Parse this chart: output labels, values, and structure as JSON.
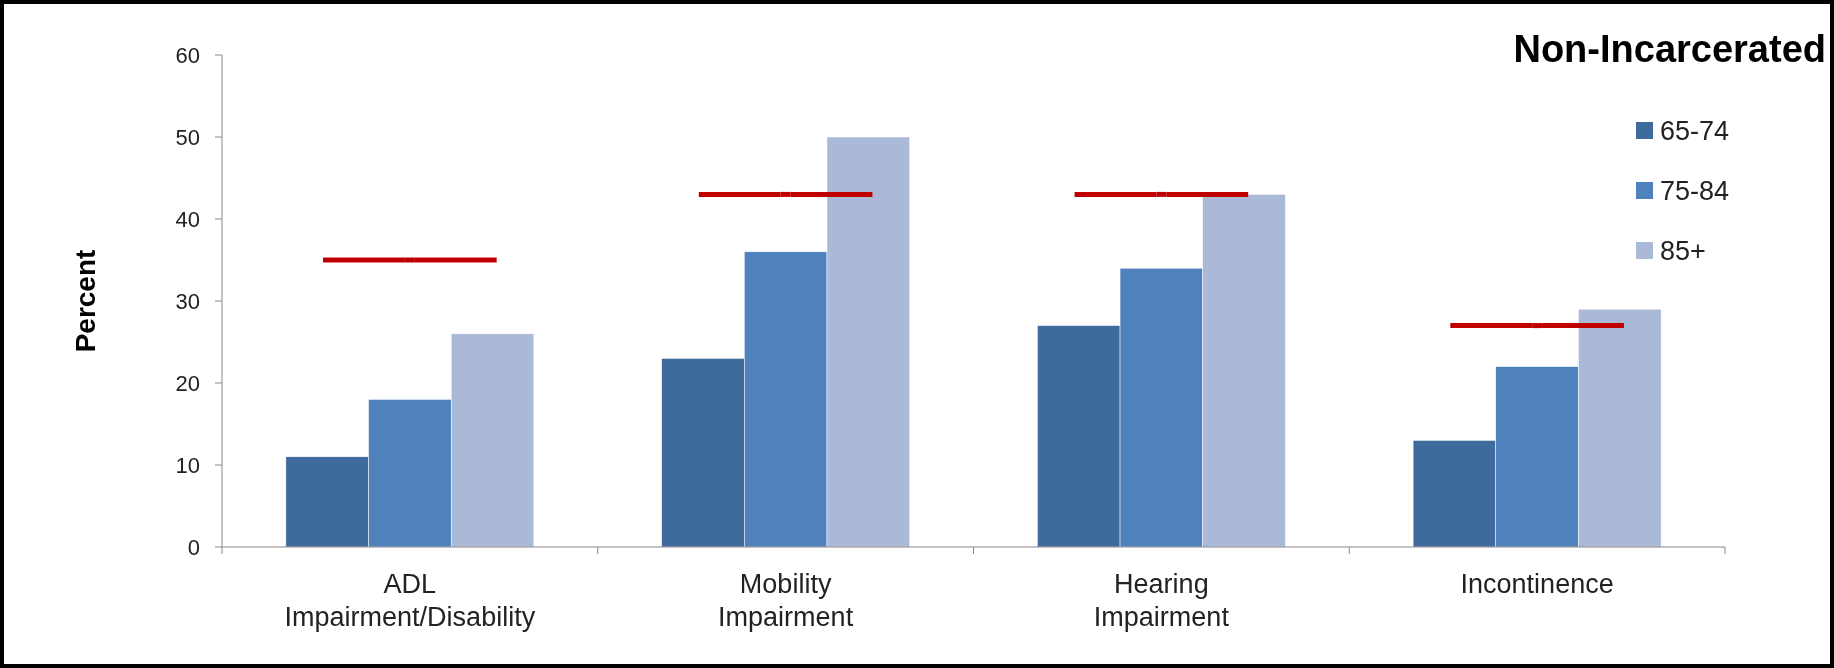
{
  "chart_data": {
    "type": "bar",
    "title": "Non-Incarcerated",
    "ylabel": "Percent",
    "categories": [
      "ADL Impairment/Disability",
      "Mobility Impairment",
      "Hearing Impairment",
      "Incontinence"
    ],
    "series": [
      {
        "name": "65-74",
        "color": "#3e6a9c",
        "values": [
          11,
          23,
          27,
          13
        ]
      },
      {
        "name": "75-84",
        "color": "#4f81bd",
        "values": [
          18,
          36,
          34,
          22
        ]
      },
      {
        "name": "85+",
        "color": "#aab9d8",
        "values": [
          26,
          50,
          43,
          29
        ]
      },
      {
        "type": "scatter",
        "color": "#c00000",
        "values": [
          35,
          43,
          43,
          27
        ]
      }
    ],
    "ylim": [
      0,
      60
    ],
    "yticks": [
      0,
      10,
      20,
      30,
      40,
      50,
      60
    ],
    "grid": false,
    "legend": "right"
  }
}
